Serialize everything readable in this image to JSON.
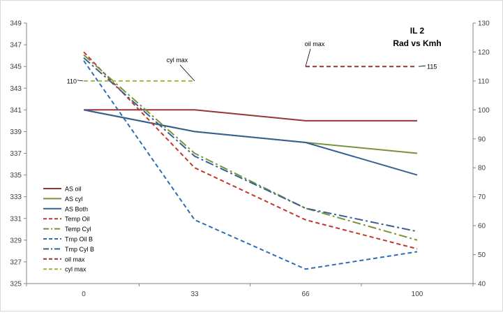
{
  "chart_data": {
    "type": "line",
    "title_line1": "IL 2",
    "title_line2": "Rad vs Kmh",
    "categories": [
      "0",
      "33",
      "66",
      "100"
    ],
    "y_left": {
      "min": 325,
      "max": 349,
      "step": 2,
      "ticks": [
        "325",
        "327",
        "329",
        "331",
        "333",
        "335",
        "337",
        "339",
        "341",
        "343",
        "345",
        "347",
        "349"
      ]
    },
    "y_right": {
      "min": 40,
      "max": 130,
      "step": 10,
      "ticks": [
        "40",
        "50",
        "60",
        "70",
        "80",
        "90",
        "100",
        "110",
        "120",
        "130"
      ]
    },
    "series": [
      {
        "name": "AS oil",
        "axis": "left",
        "color": "#953735",
        "dash": "solid",
        "values": [
          341,
          341,
          340,
          340
        ]
      },
      {
        "name": "AS cyl",
        "axis": "left",
        "color": "#77933c",
        "dash": "solid",
        "values": [
          341,
          339,
          338,
          337
        ]
      },
      {
        "name": "AS Both",
        "axis": "left",
        "color": "#376092",
        "dash": "solid",
        "values": [
          341,
          339,
          338,
          335
        ]
      },
      {
        "name": "Temp Oil",
        "axis": "right",
        "color": "#c0392b",
        "dash": "dash",
        "values": [
          120,
          80,
          62,
          52
        ]
      },
      {
        "name": "Temp Cyl",
        "axis": "right",
        "color": "#77933c",
        "dash": "dashdot",
        "values": [
          119,
          85,
          66,
          55
        ]
      },
      {
        "name": "Tmp Oil B",
        "axis": "right",
        "color": "#2e6db4",
        "dash": "dash",
        "values": [
          117,
          62,
          45,
          51
        ]
      },
      {
        "name": "Tmp Cyl B",
        "axis": "right",
        "color": "#376092",
        "dash": "dashdot",
        "values": [
          118,
          84,
          66,
          58
        ]
      },
      {
        "name": "oil max",
        "axis": "right",
        "color": "#953735",
        "dash": "dash",
        "values": [
          null,
          null,
          115,
          115
        ]
      },
      {
        "name": "cyl max",
        "axis": "right",
        "color": "#9bbb3b",
        "dash": "dash",
        "values": [
          110,
          110,
          null,
          null
        ]
      }
    ],
    "annotations": [
      {
        "text": "cyl max"
      },
      {
        "text": "110"
      },
      {
        "text": "oil max"
      },
      {
        "text": "115"
      }
    ],
    "legend": "left-bottom",
    "grid": false
  }
}
